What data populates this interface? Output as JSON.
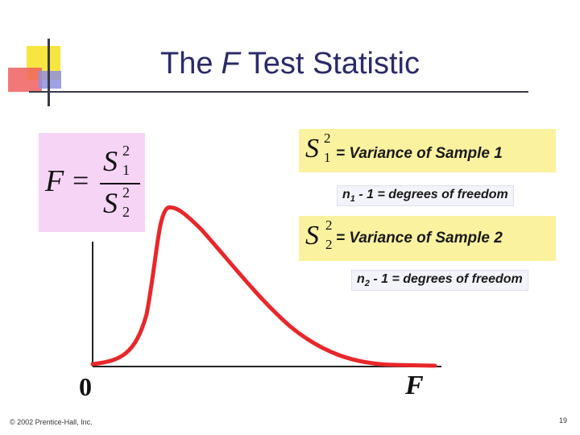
{
  "title": {
    "prefix": "The",
    "var": "F",
    "suffix": "Test Statistic"
  },
  "formula": {
    "lhs": "F",
    "eq": "=",
    "num": "S",
    "num_sup": "2",
    "num_sub": "1",
    "den": "S",
    "den_sup": "2",
    "den_sub": "2"
  },
  "sample1": {
    "symbol": "S",
    "sup": "2",
    "sub": "1",
    "label": "= Variance of Sample 1",
    "df_var": "n",
    "df_sub": "1",
    "df_text": " - 1 = degrees of freedom"
  },
  "sample2": {
    "symbol": "S",
    "sup": "2",
    "sub": "2",
    "label": "= Variance of Sample 2",
    "df_var": "n",
    "df_sub": "2",
    "df_text": " - 1 = degrees of freedom"
  },
  "axis": {
    "origin": "0",
    "x_label": "F"
  },
  "colors": {
    "curve": "#e8272a",
    "title": "#2a2a6a",
    "formula_bg": "#f6d4f6",
    "label_bg": "#fbf29f"
  },
  "footer": {
    "copyright": "© 2002 Prentice-Hall, Inc.",
    "page": "19"
  }
}
